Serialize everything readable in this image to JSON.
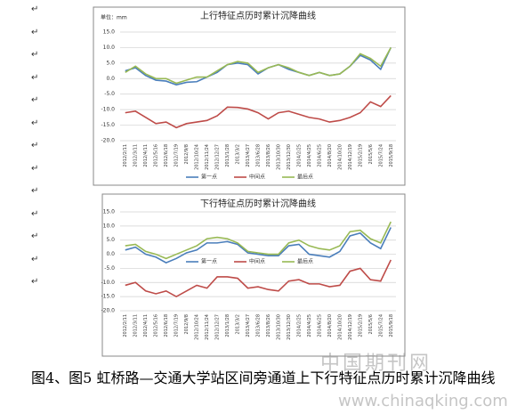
{
  "chart_data": [
    {
      "type": "line",
      "title": "上行特征点历时累计沉降曲线",
      "unit_label": "单位：mm",
      "categories": [
        "2012/2/11",
        "2012/3/11",
        "2012/4/11",
        "2012/5/16",
        "2012/6/18",
        "2012/7/19",
        "2012/9/8",
        "2012/10/24",
        "2012/11/24",
        "2012/12/27",
        "2013/1/28",
        "2013/3/2",
        "2013/4/27",
        "2013/6/28",
        "2013/8/26",
        "2013/10/30",
        "2013/12/30",
        "2014/2/25",
        "2014/4/25",
        "2014/6/25",
        "2014/8/20",
        "2014/10/20",
        "2014/12/19",
        "2015/2/19",
        "2015/5/6",
        "2015/7/24",
        "2015/9/18"
      ],
      "series": [
        {
          "name": "第一点",
          "color": "#4a7ebb",
          "values": [
            2.5,
            3.5,
            1,
            -0.5,
            -0.8,
            -2,
            -1.2,
            -1,
            0.5,
            2,
            4.5,
            5,
            4.5,
            1.5,
            3.5,
            4.5,
            3,
            2,
            1,
            2,
            1,
            1.5,
            4,
            7.5,
            6,
            3,
            10
          ]
        },
        {
          "name": "中间点",
          "color": "#be4b48",
          "values": [
            -11,
            -10.5,
            -12.5,
            -14.5,
            -14,
            -15.8,
            -14.5,
            -14,
            -13.5,
            -12,
            -9.2,
            -9.3,
            -9.8,
            -11,
            -13,
            -11,
            -10.5,
            -11.5,
            -12.5,
            -13,
            -14,
            -13.5,
            -12.5,
            -11,
            -7.5,
            -9,
            -5.5
          ]
        },
        {
          "name": "最后点",
          "color": "#98b954",
          "values": [
            2,
            4,
            1.5,
            0,
            0,
            -1.5,
            -0.5,
            0.5,
            0.5,
            2.5,
            4.5,
            5.5,
            5,
            2,
            3.5,
            4.5,
            3.5,
            2,
            1,
            2,
            1,
            1.5,
            4,
            8,
            6.5,
            4,
            10
          ]
        }
      ],
      "ylim": [
        -20,
        15
      ],
      "yticks": [
        {
          "value": -20,
          "label": "-20.0"
        },
        {
          "value": -15,
          "label": "-15.0"
        },
        {
          "value": -10,
          "label": "-10.0"
        },
        {
          "value": -5,
          "label": "-5.0"
        },
        {
          "value": 0,
          "label": "0.0"
        },
        {
          "value": 5,
          "label": "5.0"
        },
        {
          "value": 10,
          "label": "10.0"
        },
        {
          "value": 15,
          "label": "15.0"
        }
      ],
      "grid": true,
      "legend": "bottom"
    },
    {
      "type": "line",
      "title": "下行特征点历时累计沉降曲线",
      "categories": [
        "2012/2/11",
        "2012/3/11",
        "2012/4/11",
        "2012/5/16",
        "2012/6/18",
        "2012/7/19",
        "2012/9/8",
        "2012/10/24",
        "2012/11/24",
        "2012/12/27",
        "2013/1/28",
        "2013/3/2",
        "2013/4/27",
        "2013/6/28",
        "2013/8/26",
        "2013/10/30",
        "2013/12/30",
        "2014/2/25",
        "2014/4/25",
        "2014/6/25",
        "2014/8/20",
        "2014/10/20",
        "2014/12/19",
        "2015/2/19",
        "2015/5/6",
        "2015/7/24",
        "2015/9/18"
      ],
      "series": [
        {
          "name": "第一点",
          "color": "#4a7ebb",
          "values": [
            1.5,
            2.5,
            0,
            -1,
            -3,
            -1.5,
            0.5,
            1.5,
            4,
            4,
            4.5,
            3.5,
            0.5,
            0,
            -0.5,
            -0.5,
            3,
            3.5,
            0,
            -0.5,
            -1,
            1,
            6.5,
            7.5,
            4,
            2,
            9.5
          ]
        },
        {
          "name": "中间点",
          "color": "#be4b48",
          "values": [
            -11,
            -10,
            -13,
            -14,
            -13,
            -15,
            -13,
            -11,
            -12,
            -8,
            -8,
            -8.5,
            -12,
            -11.5,
            -12.5,
            -13,
            -9.5,
            -9,
            -10.5,
            -10.5,
            -11.5,
            -11,
            -6,
            -5,
            -9,
            -9.5,
            -2
          ]
        },
        {
          "name": "最后点",
          "color": "#98b954",
          "values": [
            3,
            3.5,
            1,
            0,
            -1.5,
            0,
            1.5,
            3,
            5.5,
            6,
            5.5,
            4,
            1,
            0.5,
            0,
            0,
            4,
            5,
            3,
            2,
            1.5,
            3,
            8,
            8.5,
            5.5,
            4,
            11.5
          ]
        }
      ],
      "ylim": [
        -20,
        15
      ],
      "yticks": [
        {
          "value": -20,
          "label": "-20.0"
        },
        {
          "value": -15,
          "label": "-15.0"
        },
        {
          "value": -10,
          "label": "-10.0"
        },
        {
          "value": -5,
          "label": "-5.0"
        },
        {
          "value": 0,
          "label": "0.0"
        },
        {
          "value": 5,
          "label": "5.0"
        },
        {
          "value": 10,
          "label": "10.0"
        },
        {
          "value": 15,
          "label": "15.0"
        }
      ],
      "grid": true,
      "legend": "center"
    }
  ],
  "paragraph_marks": [
    "↵",
    "↵",
    "↵",
    "↵",
    "↵",
    "↵",
    "↵",
    "↵",
    "↵",
    "↵",
    "↵",
    "↵",
    "↵"
  ],
  "caption": "图4、图5  虹桥路—交通大学站区间旁通道上下行特征点历时累计沉降曲线",
  "watermark": [
    "中国期刊网",
    "www.chinaqking.com"
  ]
}
